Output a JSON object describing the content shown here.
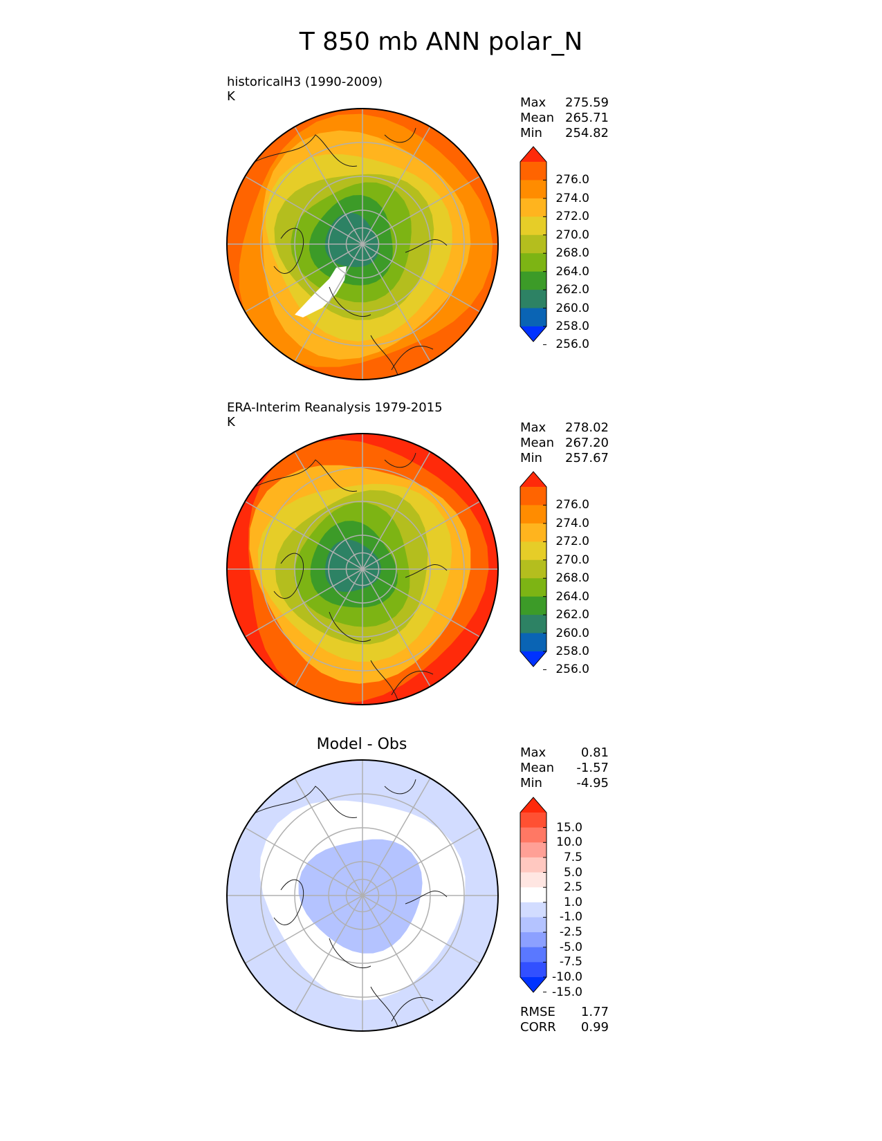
{
  "title": "T 850 mb ANN polar_N",
  "panels": [
    {
      "id": "test",
      "title_lines": [
        "historicalH3 (1990-2009)",
        "K"
      ],
      "stats": [
        {
          "label": "Max",
          "value": "275.59"
        },
        {
          "label": "Mean",
          "value": "265.71"
        },
        {
          "label": "Min",
          "value": "254.82"
        }
      ],
      "colorbar": {
        "tick_labels": [
          "276.0",
          "274.0",
          "272.0",
          "270.0",
          "268.0",
          "264.0",
          "262.0",
          "260.0",
          "258.0",
          "256.0"
        ],
        "colors": [
          "#ff2a0a",
          "#ff6400",
          "#ff8c00",
          "#ffb41e",
          "#e6cd28",
          "#b4be1e",
          "#7db414",
          "#3c9b28",
          "#2d8264",
          "#0a64b4",
          "#0032ff"
        ]
      },
      "map_colors": [
        "#ff6400",
        "#ff8c00",
        "#ffb41e",
        "#e6cd28",
        "#b4be1e",
        "#7db414",
        "#3c9b28",
        "#2d8264"
      ],
      "has_missing_region": true
    },
    {
      "id": "reference",
      "title_lines": [
        "ERA-Interim Reanalysis 1979-2015",
        "K"
      ],
      "stats": [
        {
          "label": "Max",
          "value": "278.02"
        },
        {
          "label": "Mean",
          "value": "267.20"
        },
        {
          "label": "Min",
          "value": "257.67"
        }
      ],
      "colorbar": {
        "tick_labels": [
          "276.0",
          "274.0",
          "272.0",
          "270.0",
          "268.0",
          "264.0",
          "262.0",
          "260.0",
          "258.0",
          "256.0"
        ],
        "colors": [
          "#ff2a0a",
          "#ff6400",
          "#ff8c00",
          "#ffb41e",
          "#e6cd28",
          "#b4be1e",
          "#7db414",
          "#3c9b28",
          "#2d8264",
          "#0a64b4",
          "#0032ff"
        ]
      },
      "map_colors": [
        "#ff2a0a",
        "#ff6400",
        "#ffb41e",
        "#e6cd28",
        "#b4be1e",
        "#7db414",
        "#3c9b28",
        "#2d8264"
      ],
      "has_missing_region": false
    },
    {
      "id": "diff",
      "title": "Model - Obs",
      "stats": [
        {
          "label": "Max",
          "value": "0.81"
        },
        {
          "label": "Mean",
          "value": "-1.57"
        },
        {
          "label": "Min",
          "value": "-4.95"
        }
      ],
      "colorbar": {
        "tick_labels": [
          "15.0",
          "10.0",
          "7.5",
          "5.0",
          "2.5",
          "1.0",
          "-1.0",
          "-2.5",
          "-5.0",
          "-7.5",
          "-10.0",
          "-15.0"
        ],
        "colors": [
          "#ff2a0a",
          "#ff5032",
          "#ff7864",
          "#ffa096",
          "#ffc8c0",
          "#ffe6e2",
          "#ffffff",
          "#d2dcff",
          "#b4c3ff",
          "#8ca0ff",
          "#5a78ff",
          "#3250ff",
          "#0032ff"
        ]
      },
      "map_colors": [
        "#d2dcff",
        "#ffffff",
        "#b4c3ff"
      ],
      "metrics": [
        {
          "label": "RMSE",
          "value": "1.77"
        },
        {
          "label": "CORR",
          "value": "0.99"
        }
      ]
    }
  ]
}
